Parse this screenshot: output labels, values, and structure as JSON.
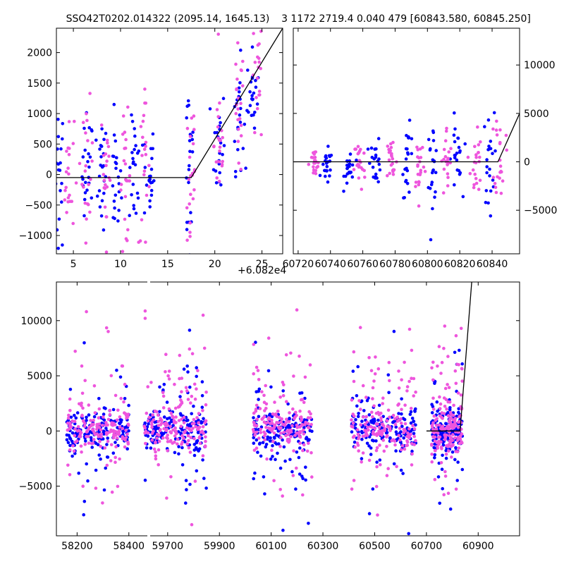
{
  "colors": {
    "blue": "#0000ff",
    "magenta": "#ee55dd",
    "line": "#000000"
  },
  "chart_data": [
    {
      "id": "top-left",
      "type": "scatter",
      "title": "SSO42T0202.014322 (2095.14, 1645.13)",
      "xlim": [
        3.2,
        27.2
      ],
      "ylim": [
        -1300,
        2400
      ],
      "xticks": [
        5,
        10,
        15,
        20,
        25
      ],
      "xtick_labels": [
        "5",
        "10",
        "15",
        "20",
        "25"
      ],
      "yticks": [
        -1000,
        -500,
        0,
        500,
        1000,
        1500,
        2000
      ],
      "ytick_labels": [
        "−1000",
        "−500",
        "0",
        "500",
        "1000",
        "1500",
        "2000"
      ],
      "model_line": [
        [
          3.2,
          -50
        ],
        [
          17.5,
          -50
        ],
        [
          27.2,
          2400
        ]
      ],
      "series": [
        {
          "name": "band-blue",
          "color": "blue",
          "clusters": [
            [
              3.5,
              0,
              650
            ],
            [
              6.5,
              0,
              500
            ],
            [
              8.0,
              0,
              450
            ],
            [
              9.5,
              -100,
              500
            ],
            [
              11.5,
              0,
              450
            ],
            [
              13.0,
              0,
              450
            ],
            [
              17.3,
              200,
              900
            ],
            [
              20.5,
              500,
              500
            ],
            [
              22.5,
              1000,
              450
            ],
            [
              24.0,
              1300,
              350
            ]
          ]
        },
        {
          "name": "band-magenta",
          "color": "magenta",
          "clusters": [
            [
              4.5,
              0,
              500
            ],
            [
              6.5,
              50,
              550
            ],
            [
              8.5,
              50,
              600
            ],
            [
              10.5,
              -100,
              550
            ],
            [
              12.5,
              0,
              600
            ],
            [
              17.5,
              0,
              900
            ],
            [
              20.5,
              500,
              550
            ],
            [
              22.5,
              1000,
              550
            ],
            [
              24.5,
              1500,
              550
            ]
          ]
        }
      ]
    },
    {
      "id": "top-right",
      "type": "scatter",
      "title": "3 1172 2719.4 0.040 479 [60843.580, 60845.250]",
      "offset_label": "+6.082e4",
      "xlim": [
        60717,
        60857
      ],
      "ylim": [
        -9500,
        13800
      ],
      "xticks": [
        60720,
        60740,
        60760,
        60780,
        60800,
        60820,
        60840
      ],
      "xtick_labels": [
        "60720",
        "60740",
        "60760",
        "60780",
        "60800",
        "60820",
        "60840"
      ],
      "yticks": [
        -5000,
        0,
        5000,
        10000
      ],
      "ytick_labels": [
        "−5000",
        "0",
        "5000",
        "10000"
      ],
      "model_line": [
        [
          60717,
          0
        ],
        [
          60843.6,
          0
        ],
        [
          60857,
          5000
        ]
      ],
      "series": [
        {
          "name": "band-blue",
          "color": "blue",
          "clusters": [
            [
              60738,
              -600,
              900
            ],
            [
              60752,
              -500,
              1000
            ],
            [
              60768,
              100,
              1200
            ],
            [
              60788,
              0,
              1800
            ],
            [
              60803,
              0,
              2000
            ],
            [
              60818,
              100,
              2200
            ],
            [
              60838,
              0,
              2500
            ]
          ]
        },
        {
          "name": "band-magenta",
          "color": "magenta",
          "clusters": [
            [
              60730,
              -300,
              800
            ],
            [
              60758,
              -300,
              1400
            ],
            [
              60778,
              0,
              1500
            ],
            [
              60795,
              0,
              1600
            ],
            [
              60812,
              -100,
              1900
            ],
            [
              60830,
              0,
              2000
            ],
            [
              60845,
              1000,
              2200
            ]
          ]
        }
      ]
    },
    {
      "id": "bottom",
      "type": "scatter",
      "title": "",
      "xlim": [
        58120,
        61060
      ],
      "ylim": [
        -9500,
        13500
      ],
      "xticks": [
        58200,
        58400,
        59700,
        59900,
        60100,
        60300,
        60500,
        60700,
        60900
      ],
      "xtick_labels": [
        "58200",
        "58400",
        "59700",
        "59900",
        "60100",
        "60300",
        "60500",
        "60700",
        "60900"
      ],
      "yticks": [
        -5000,
        0,
        5000,
        10000
      ],
      "ytick_labels": [
        "−5000",
        "0",
        "5000",
        "10000"
      ],
      "axis_break": {
        "from": 58450,
        "to": 59600
      },
      "model_line": [
        [
          60700,
          0
        ],
        [
          60830,
          0
        ],
        [
          60875,
          13500
        ]
      ],
      "series": [
        {
          "name": "band-blue",
          "color": "blue",
          "seasons": [
            [
              58160,
              58400
            ],
            [
              59610,
              59850
            ],
            [
              60030,
              60260
            ],
            [
              60410,
              60660
            ],
            [
              60720,
              60840
            ]
          ]
        },
        {
          "name": "band-magenta",
          "color": "magenta",
          "seasons": [
            [
              58160,
              58400
            ],
            [
              59610,
              59850
            ],
            [
              60030,
              60260
            ],
            [
              60410,
              60660
            ],
            [
              60720,
              60840
            ]
          ]
        }
      ]
    }
  ]
}
